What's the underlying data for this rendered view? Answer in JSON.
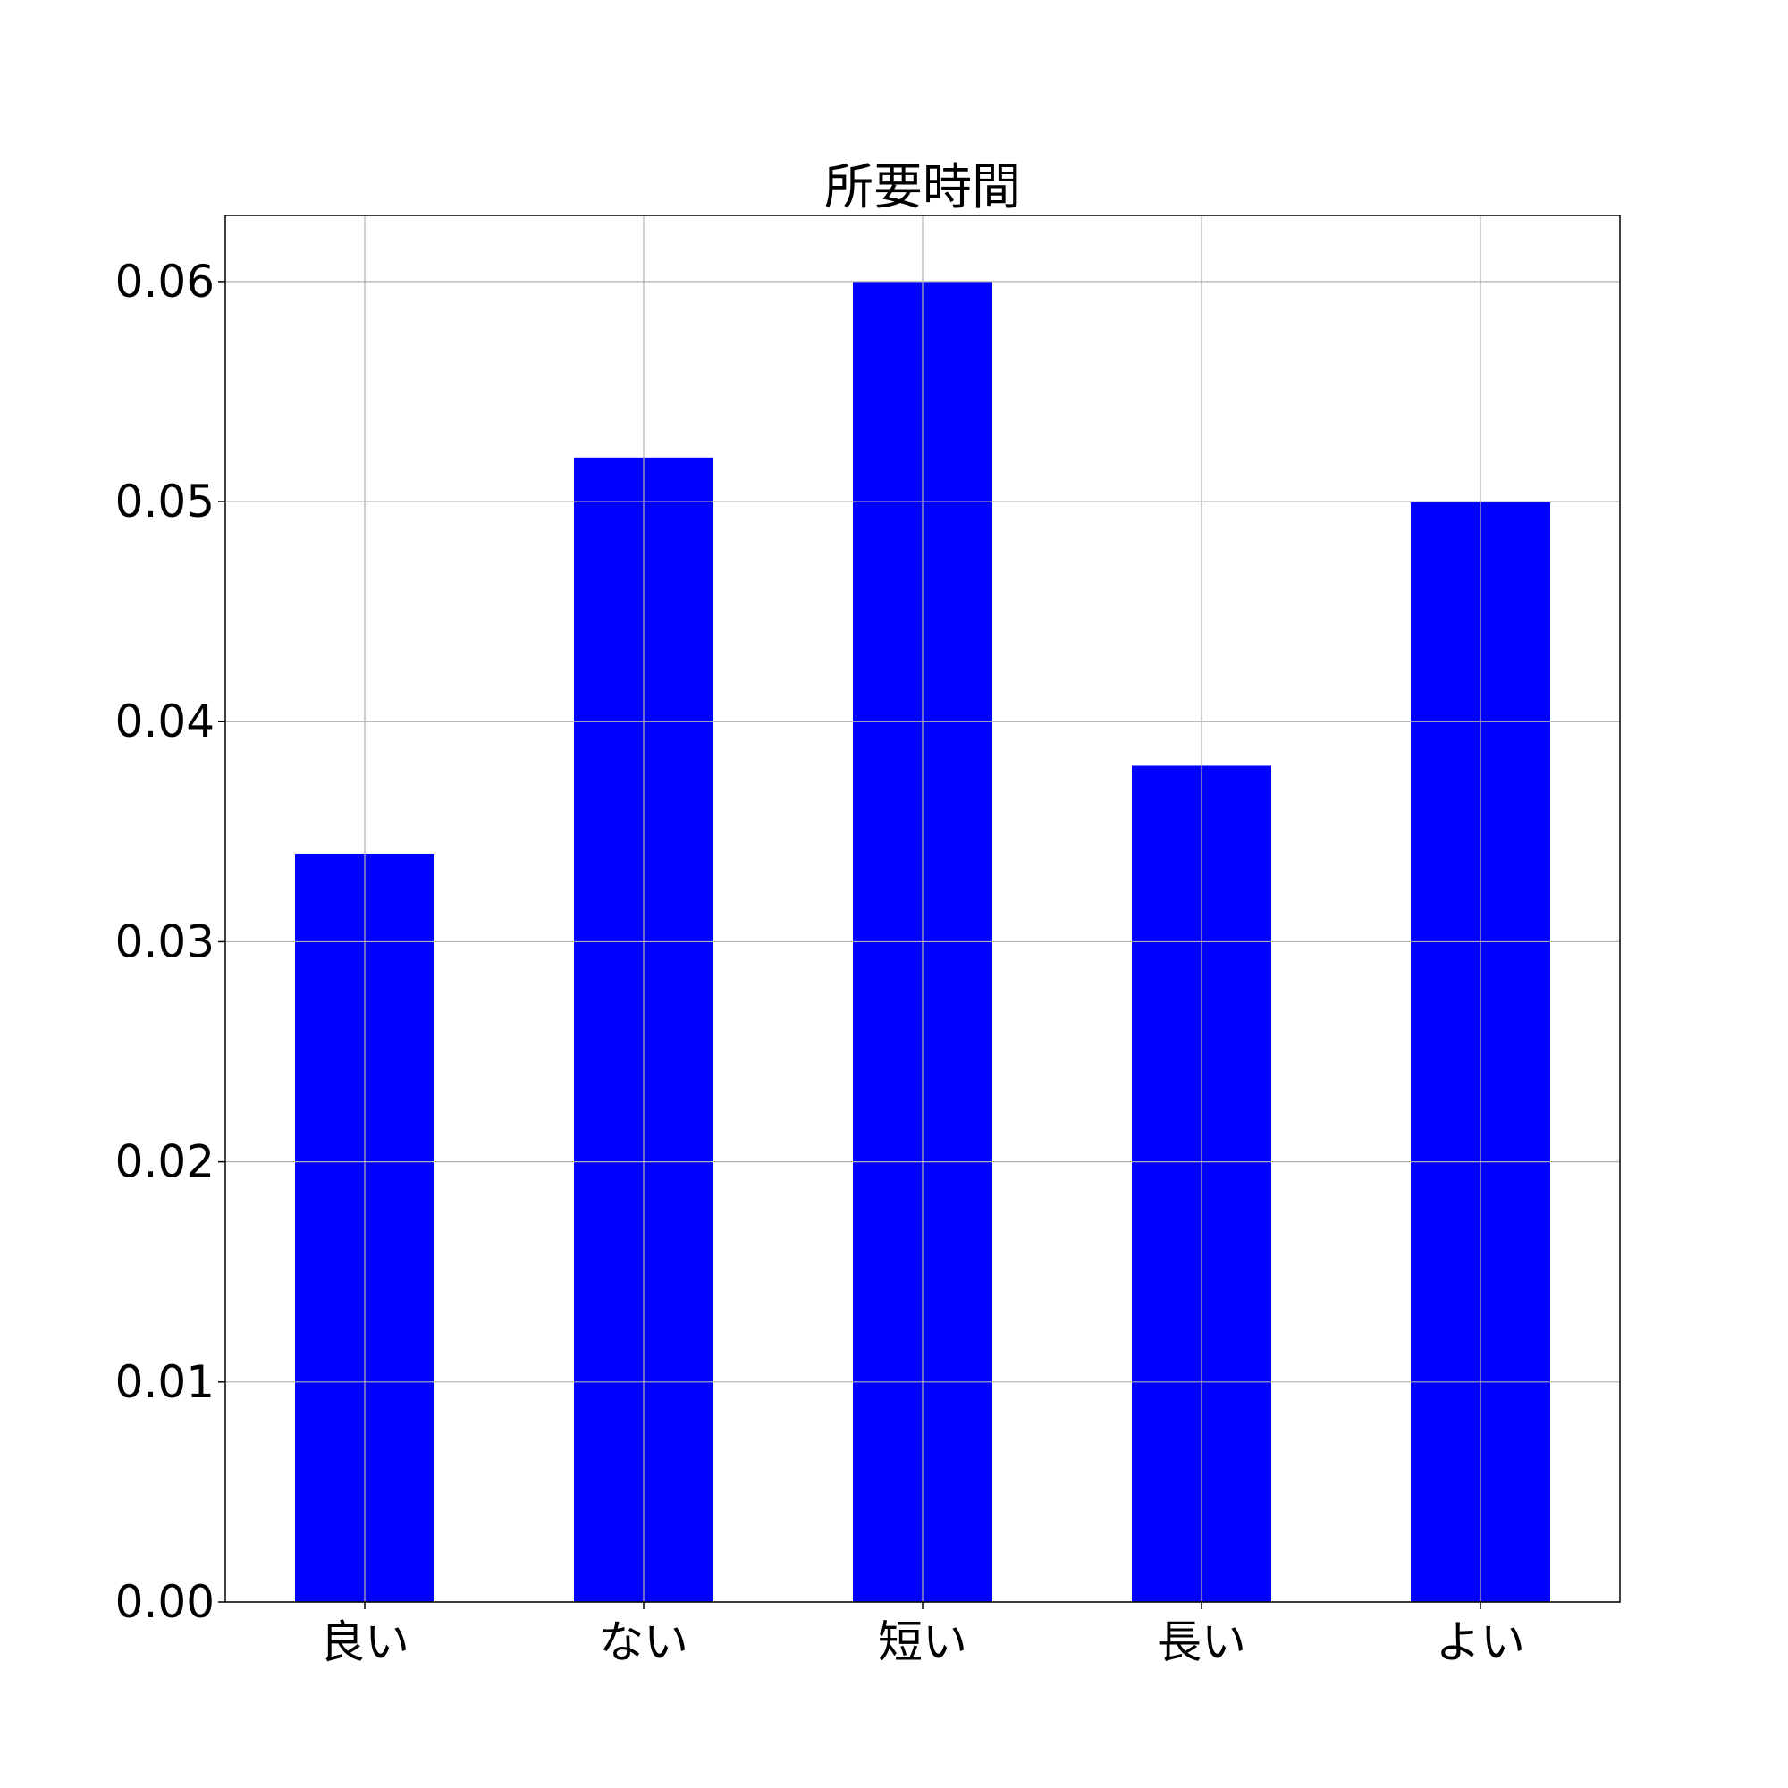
{
  "chart_data": {
    "type": "bar",
    "title": "所要時間",
    "xlabel": "",
    "ylabel": "",
    "categories": [
      "良い",
      "ない",
      "短い",
      "長い",
      "よい"
    ],
    "values": [
      0.034,
      0.052,
      0.06,
      0.038,
      0.05
    ],
    "ylim": [
      0,
      0.063
    ],
    "yticks": [
      "0.00",
      "0.01",
      "0.02",
      "0.03",
      "0.04",
      "0.05",
      "0.06"
    ],
    "grid": true,
    "bar_color": "#0000ff",
    "grid_color": "#b0b0b0",
    "axis_color": "#000000"
  }
}
